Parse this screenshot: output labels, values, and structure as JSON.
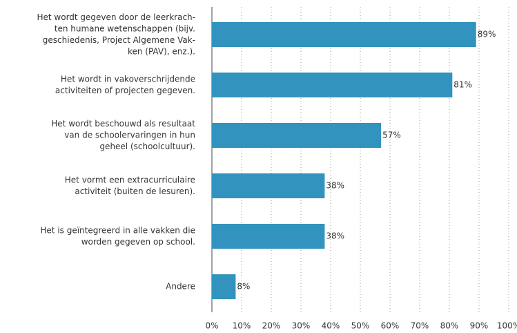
{
  "chart_data": {
    "type": "bar",
    "orientation": "horizontal",
    "categories": [
      [
        "Het wordt gegeven door de leerkrach-",
        "ten humane wetenschappen (bijv.",
        "geschiedenis, Project Algemene Vak-",
        "ken (PAV), enz.)."
      ],
      [
        "Het wordt in vakoverschrijdende",
        "activiteiten of projecten gegeven."
      ],
      [
        "Het wordt beschouwd als resultaat",
        "van de schoolervaringen in hun",
        "geheel (schoolcultuur)."
      ],
      [
        "Het vormt een extracurriculaire",
        "activiteit (buiten de lesuren)."
      ],
      [
        "Het is geïntegreerd in alle vakken die",
        "worden gegeven op school."
      ],
      [
        "Andere"
      ]
    ],
    "values": [
      89,
      81,
      57,
      38,
      38,
      8
    ],
    "value_labels": [
      "89%",
      "81%",
      "57%",
      "38%",
      "38%",
      "8%"
    ],
    "color": "#3193be",
    "xlim": [
      0,
      100
    ],
    "xticks": [
      {
        "value": 0,
        "label": "0%"
      },
      {
        "value": 10,
        "label": "10%"
      },
      {
        "value": 20,
        "label": "20%"
      },
      {
        "value": 30,
        "label": "30%"
      },
      {
        "value": 40,
        "label": "40%"
      },
      {
        "value": 50,
        "label": "50%"
      },
      {
        "value": 60,
        "label": "60%"
      },
      {
        "value": 70,
        "label": "70%"
      },
      {
        "value": 80,
        "label": "80%"
      },
      {
        "value": 90,
        "label": "90%"
      },
      {
        "value": 100,
        "label": "100%"
      }
    ],
    "grid": true
  }
}
